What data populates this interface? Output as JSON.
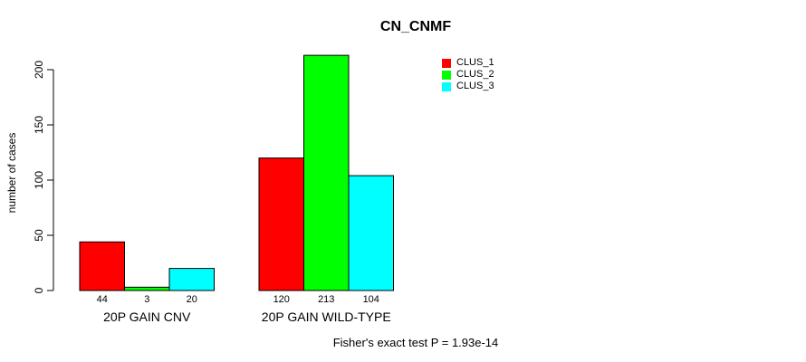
{
  "chart_data": {
    "type": "bar",
    "title": "CN_CNMF",
    "ylabel": "number of cases",
    "xlabel": "",
    "categories": [
      "20P GAIN CNV",
      "20P GAIN WILD-TYPE"
    ],
    "series": [
      {
        "name": "CLUS_1",
        "color": "#FF0000",
        "values": [
          44,
          120
        ]
      },
      {
        "name": "CLUS_2",
        "color": "#00FF00",
        "values": [
          3,
          213
        ]
      },
      {
        "name": "CLUS_3",
        "color": "#00FFFF",
        "values": [
          20,
          104
        ]
      }
    ],
    "yticks": [
      0,
      50,
      100,
      150,
      200
    ],
    "ylim": [
      0,
      213
    ],
    "grid": false,
    "legend_position": "top-right",
    "bar_value_labels": true,
    "bar_border_color": "#000000",
    "annotation": "Fisher's exact test P = 1.93e-14"
  }
}
